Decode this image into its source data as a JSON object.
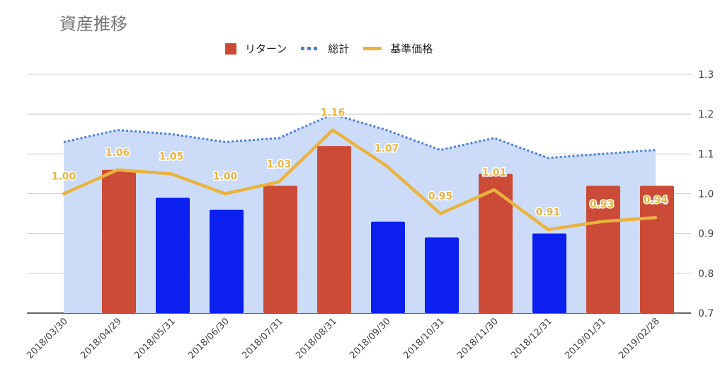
{
  "chart_data": {
    "type": "bar",
    "title": "資産推移",
    "categories": [
      "2018/03/30",
      "2018/04/29",
      "2018/05/31",
      "2018/06/30",
      "2018/07/31",
      "2018/08/31",
      "2018/09/30",
      "2018/10/31",
      "2018/11/30",
      "2018/12/31",
      "2019/01/31",
      "2019/02/28"
    ],
    "ylim": [
      0.7,
      1.3
    ],
    "yticks": [
      "0.7",
      "0.8",
      "0.9",
      "1.0",
      "1.1",
      "1.2",
      "1.3"
    ],
    "yaxis_position": "right",
    "grid": true,
    "legend_position": "top",
    "colors": {
      "positive": "#cc4b37",
      "negative": "#0b1fee",
      "area_fill": "#c9daf8",
      "total": "#4a7fe0",
      "nav": "#eab33e",
      "grid": "#cccccc",
      "axis": "#333333"
    },
    "series": [
      {
        "name": "リターン",
        "kind": "bar",
        "values": [
          null,
          1.06,
          0.99,
          0.96,
          1.02,
          1.12,
          0.93,
          0.89,
          1.05,
          0.9,
          1.02,
          1.02
        ],
        "sign": [
          null,
          "positive",
          "negative",
          "negative",
          "positive",
          "positive",
          "negative",
          "negative",
          "positive",
          "negative",
          "positive",
          "positive"
        ]
      },
      {
        "name": "総計",
        "kind": "area-dotted",
        "values": [
          1.13,
          1.16,
          1.15,
          1.13,
          1.14,
          1.2,
          1.16,
          1.11,
          1.14,
          1.09,
          1.1,
          1.11
        ]
      },
      {
        "name": "基準価格",
        "kind": "line",
        "values": [
          1.0,
          1.06,
          1.05,
          1.0,
          1.03,
          1.16,
          1.07,
          0.95,
          1.01,
          0.91,
          0.93,
          0.94
        ],
        "labels": [
          "1.00",
          "1.06",
          "1.05",
          "1.00",
          "1.03",
          "1.16",
          "1.07",
          "0.95",
          "1.01",
          "0.91",
          "0.93",
          "0.94"
        ]
      }
    ]
  }
}
